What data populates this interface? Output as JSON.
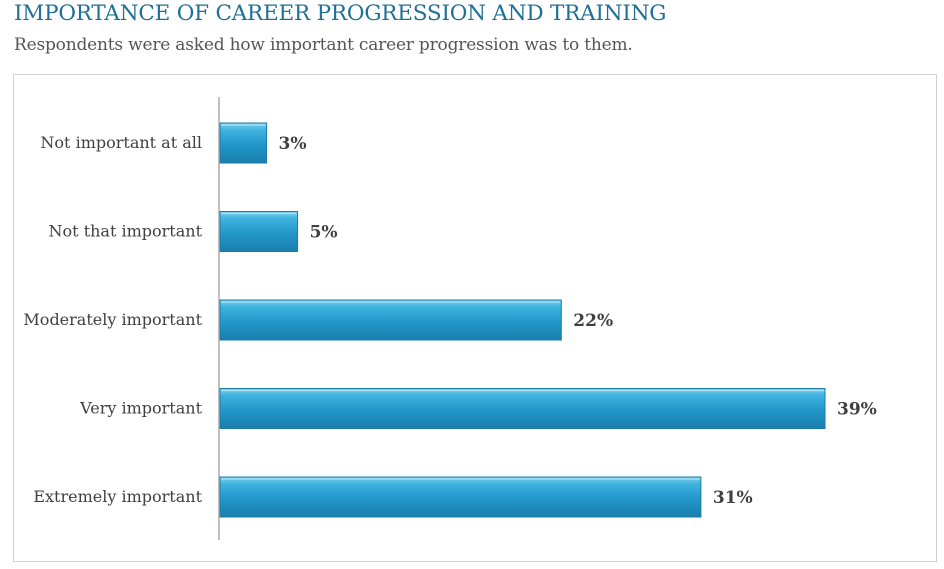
{
  "header": {
    "title": "IMPORTANCE OF CAREER PROGRESSION AND TRAINING",
    "subtitle": "Respondents were asked how important career progression was to them."
  },
  "chart_data": {
    "type": "bar",
    "orientation": "horizontal",
    "categories": [
      "Not important at all",
      "Not that important",
      "Moderately important",
      "Very important",
      "Extremely important"
    ],
    "values": [
      3,
      5,
      22,
      39,
      31
    ],
    "value_labels": [
      "3%",
      "5%",
      "22%",
      "39%",
      "31%"
    ],
    "unit": "%",
    "xlim": [
      0,
      39
    ],
    "grid": false,
    "legend": "none",
    "bar_color": "#2a9fd0",
    "bar_edge_color": "#1b7ba6"
  }
}
